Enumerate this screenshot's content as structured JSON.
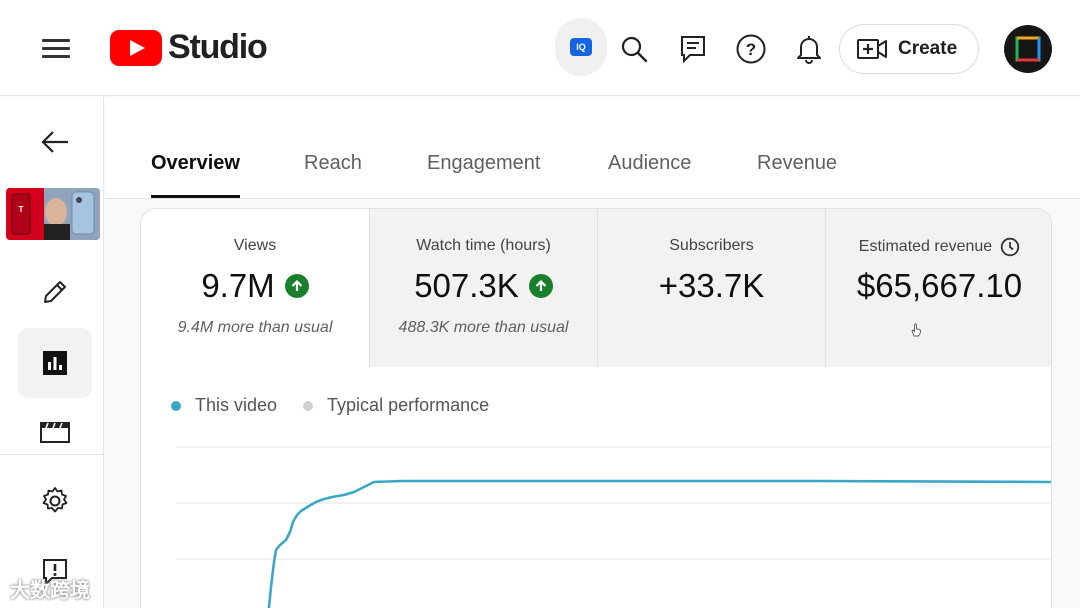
{
  "header": {
    "app_name": "Studio",
    "iq_label": "IQ",
    "create_label": "Create"
  },
  "tabs": [
    {
      "label": "Overview"
    },
    {
      "label": "Reach"
    },
    {
      "label": "Engagement"
    },
    {
      "label": "Audience"
    },
    {
      "label": "Revenue"
    }
  ],
  "metrics": [
    {
      "label": "Views",
      "value": "9.7M",
      "sub": "9.4M more than usual"
    },
    {
      "label": "Watch time (hours)",
      "value": "507.3K",
      "sub": "488.3K more than usual"
    },
    {
      "label": "Subscribers",
      "value": "+33.7K",
      "sub": ""
    },
    {
      "label": "Estimated revenue",
      "value": "$65,667.10",
      "sub": ""
    }
  ],
  "legend": {
    "this_video": "This video",
    "typical": "Typical performance"
  },
  "colors": {
    "accent_line": "#3aa7c7",
    "up_badge": "#1a7f2a",
    "brand_red": "#ff0000"
  },
  "watermark": "大数跨境"
}
